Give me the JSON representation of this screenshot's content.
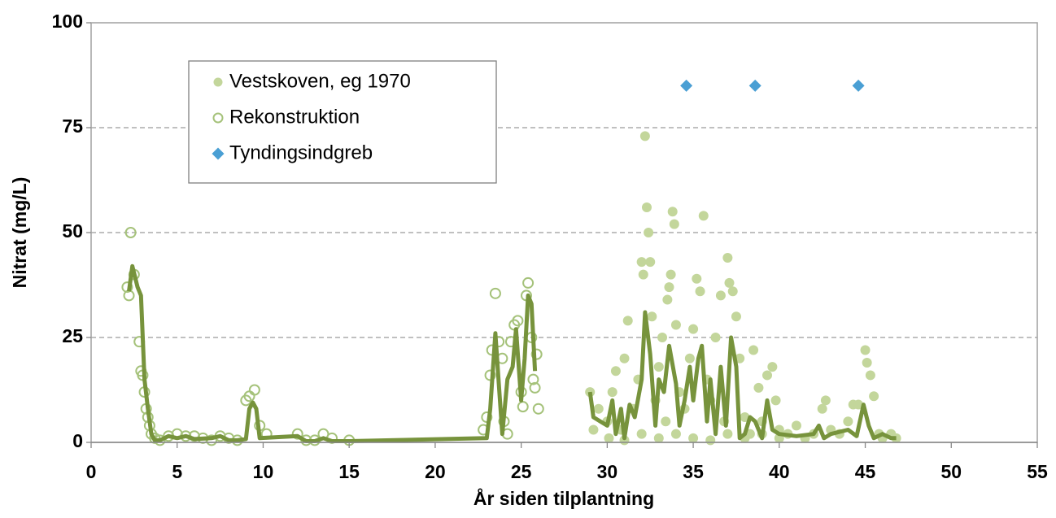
{
  "chart_data": {
    "type": "scatter",
    "x_label": "År siden tilplantning",
    "y_label": "Nitrat (mg/L)",
    "xlim": [
      0,
      55
    ],
    "xticks": [
      0,
      5,
      10,
      15,
      20,
      25,
      30,
      35,
      40,
      45,
      50,
      55
    ],
    "ylim": [
      0,
      100
    ],
    "yticks": [
      0,
      25,
      50,
      75,
      100
    ],
    "grid": true,
    "legend": "upper left",
    "series": [
      {
        "name": "Rekonstruktion",
        "marker": "circle",
        "filled": false,
        "color": "#a5c27a",
        "x": [
          2.1,
          2.2,
          2.3,
          2.5,
          2.8,
          2.9,
          3.0,
          3.1,
          3.2,
          3.3,
          3.4,
          3.5,
          3.7,
          4.0,
          4.5,
          5.0,
          5.5,
          6.0,
          6.5,
          7.0,
          7.5,
          8.0,
          8.5,
          9.0,
          9.2,
          9.5,
          9.8,
          10.2,
          12.0,
          12.5,
          13.0,
          13.5,
          14.0,
          15.0,
          22.8,
          23.0,
          23.2,
          23.3,
          23.5,
          23.7,
          23.9,
          24.0,
          24.2,
          24.4,
          24.6,
          24.8,
          25.0,
          25.1,
          25.3,
          25.4,
          25.6,
          25.7,
          25.8,
          25.9,
          26.0
        ],
        "values": [
          37,
          35,
          50,
          40,
          24,
          17,
          16,
          12,
          8,
          6,
          4,
          2,
          1,
          0.5,
          1.5,
          2,
          1.5,
          1.5,
          1,
          0.5,
          1.5,
          1,
          0.5,
          10,
          11,
          12.5,
          4,
          2,
          2,
          0.5,
          0.5,
          2,
          1,
          0.5,
          3,
          6,
          16,
          22,
          35.5,
          24,
          20,
          5,
          2,
          24,
          28,
          29,
          12,
          8.5,
          35,
          38,
          25,
          15,
          13,
          21,
          8
        ]
      },
      {
        "name": "Vestskoven, eg 1970",
        "marker": "circle",
        "filled": true,
        "color": "#c3d69b",
        "x": [
          29.0,
          29.2,
          29.5,
          30.0,
          30.3,
          30.5,
          30.8,
          31.0,
          31.2,
          31.5,
          31.8,
          32.0,
          32.1,
          32.2,
          32.3,
          32.4,
          32.5,
          32.6,
          32.8,
          33.0,
          33.2,
          33.4,
          33.5,
          33.6,
          33.7,
          33.8,
          33.9,
          34.0,
          34.2,
          34.5,
          34.8,
          35.0,
          35.2,
          35.4,
          35.6,
          35.8,
          36.0,
          36.3,
          36.6,
          36.8,
          37.0,
          37.1,
          37.3,
          37.5,
          37.7,
          38.0,
          38.3,
          38.5,
          38.8,
          39.0,
          39.3,
          39.6,
          39.8,
          40.0,
          40.5,
          41.0,
          41.5,
          42.0,
          42.5,
          42.7,
          43.0,
          43.5,
          44.0,
          44.3,
          44.6,
          45.0,
          45.1,
          45.3,
          45.5,
          45.8,
          46.0,
          46.5,
          46.8,
          30.1,
          31.0,
          32.0,
          33.0,
          34.0,
          35.0,
          36.0,
          37.0,
          38.0,
          39.0,
          40.0
        ],
        "values": [
          12,
          3,
          8,
          5,
          12,
          17,
          3,
          20,
          29,
          8,
          15,
          43,
          40,
          73,
          56,
          50,
          43,
          30,
          10,
          18,
          25,
          5,
          34,
          37,
          40,
          55,
          52,
          28,
          12,
          8,
          20,
          27,
          39,
          36,
          54,
          15,
          10,
          25,
          35,
          5,
          44,
          38,
          36,
          30,
          20,
          6,
          2,
          22,
          13,
          5,
          16,
          18,
          10,
          3,
          2,
          4,
          1,
          2,
          8,
          10,
          3,
          2,
          5,
          9,
          9,
          22,
          19,
          16,
          11,
          2,
          1,
          2,
          1,
          1,
          0.5,
          2,
          1,
          2,
          1,
          0.5,
          2,
          1,
          2,
          1
        ]
      },
      {
        "marker": "line",
        "color": "#77933c",
        "x": [
          2.2,
          2.4,
          2.7,
          2.9,
          3.1,
          3.3,
          3.5,
          3.7,
          4.0,
          4.5,
          5.0,
          5.5,
          6.0,
          7.0,
          7.5,
          8.0,
          8.5,
          9.0,
          9.2,
          9.4,
          9.6,
          9.8,
          12.0,
          12.5,
          13.0,
          13.5,
          14.0,
          15.0,
          23.0,
          23.2,
          23.5,
          23.7,
          23.9,
          24.2,
          24.5,
          24.7,
          25.0,
          25.2,
          25.4,
          25.6,
          25.8,
          27.0,
          29.0,
          29.2,
          29.6,
          30.0,
          30.3,
          30.5,
          30.8,
          31.0,
          31.3,
          31.6,
          32.0,
          32.2,
          32.5,
          32.8,
          33.0,
          33.3,
          33.6,
          34.0,
          34.2,
          34.5,
          34.8,
          35.0,
          35.3,
          35.5,
          35.8,
          36.0,
          36.3,
          36.6,
          36.9,
          37.2,
          37.5,
          37.7,
          38.0,
          38.3,
          38.6,
          39.0,
          39.3,
          39.6,
          40.0,
          41.0,
          42.0,
          42.3,
          42.6,
          43.0,
          44.0,
          44.5,
          44.9,
          45.2,
          45.5,
          46.0,
          46.5,
          46.8
        ],
        "values": [
          36,
          42,
          37,
          35,
          15,
          8,
          2,
          0.5,
          0.5,
          1.5,
          1,
          1.5,
          0.8,
          1,
          1.5,
          0.5,
          0.5,
          0.8,
          8,
          9.5,
          8,
          1,
          1.5,
          0.3,
          0.3,
          1,
          0.3,
          0.3,
          1,
          8,
          26,
          14,
          2,
          15,
          18,
          27,
          10,
          20,
          35,
          33,
          17,
          null,
          12,
          6,
          5,
          4,
          10,
          2,
          8,
          1,
          9,
          6,
          15,
          31,
          21,
          4,
          15,
          12,
          23,
          14,
          4,
          10,
          18,
          10,
          20,
          23,
          5,
          15,
          2,
          18,
          4,
          25,
          18,
          1,
          2,
          6,
          5,
          1,
          10,
          3,
          2,
          1.5,
          2,
          4,
          1,
          2,
          3,
          1.5,
          9,
          4,
          1,
          2,
          1,
          1
        ]
      },
      {
        "name": "Tyndingsindgreb",
        "marker": "diamond",
        "filled": true,
        "color": "#4a9fd4",
        "x": [
          34.6,
          38.6,
          44.6
        ],
        "values": [
          85,
          85,
          85
        ]
      }
    ]
  }
}
